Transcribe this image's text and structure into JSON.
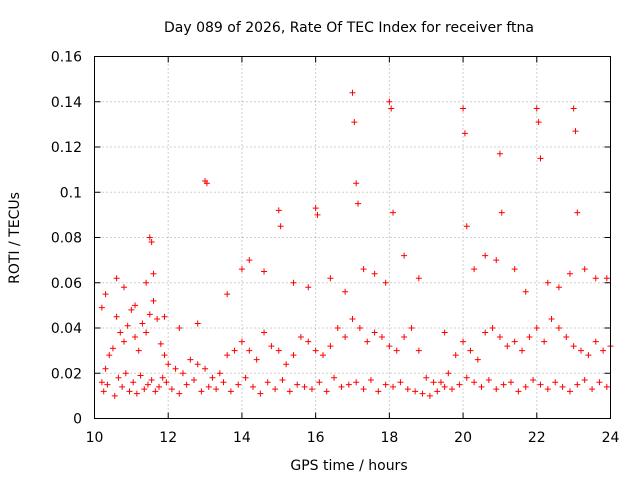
{
  "chart_data": {
    "type": "scatter",
    "title": "Day 089 of 2026, Rate Of TEC Index for receiver ftna",
    "xlabel": "GPS time / hours",
    "ylabel": "ROTI / TECUs",
    "xlim": [
      10,
      24
    ],
    "ylim": [
      0,
      0.16
    ],
    "xticks": [
      10,
      12,
      14,
      16,
      18,
      20,
      22,
      24
    ],
    "xtick_labels": [
      "10",
      "12",
      "14",
      "16",
      "18",
      "20",
      "22",
      "24"
    ],
    "yticks": [
      0,
      0.02,
      0.04,
      0.06,
      0.08,
      0.1,
      0.12,
      0.14,
      0.16
    ],
    "ytick_labels": [
      "0",
      "0.02",
      "0.04",
      "0.06",
      "0.08",
      "0.1",
      "0.12",
      "0.14",
      "0.16"
    ],
    "grid": true,
    "marker": "+",
    "color": "#ff0000",
    "series": [
      {
        "name": "ROTI",
        "x": [
          10.2,
          10.3,
          10.4,
          10.5,
          10.6,
          10.7,
          10.8,
          10.9,
          11.0,
          11.1,
          11.2,
          11.3,
          11.4,
          11.5,
          11.6,
          11.7,
          11.8,
          11.9,
          12.0,
          12.2,
          12.4,
          12.6,
          12.8,
          13.0,
          13.2,
          13.4,
          13.6,
          13.8,
          14.0,
          14.2,
          14.4,
          14.6,
          14.8,
          15.0,
          15.2,
          15.4,
          15.6,
          15.8,
          16.0,
          16.2,
          16.4,
          16.6,
          16.8,
          17.0,
          17.2,
          17.4,
          17.6,
          17.8,
          18.0,
          18.2,
          18.4,
          18.6,
          18.8,
          19.0,
          19.2,
          19.4,
          19.6,
          19.8,
          20.0,
          20.2,
          20.4,
          20.6,
          20.8,
          21.0,
          21.2,
          21.4,
          21.6,
          21.8,
          22.0,
          22.2,
          22.4,
          22.6,
          22.8,
          23.0,
          23.2,
          23.4,
          23.6,
          23.8,
          24.0,
          10.25,
          10.35,
          10.55,
          10.65,
          10.75,
          10.85,
          10.95,
          11.05,
          11.15,
          11.25,
          11.35,
          11.45,
          11.55,
          11.65,
          11.75,
          11.85,
          11.95,
          12.1,
          12.3,
          12.5,
          12.7,
          12.9,
          13.1,
          13.3,
          13.5,
          13.7,
          13.9,
          14.1,
          14.3,
          14.5,
          14.7,
          14.9,
          15.1,
          15.3,
          15.5,
          15.7,
          15.9,
          16.1,
          16.3,
          16.5,
          16.7,
          16.9,
          17.1,
          17.3,
          17.5,
          17.7,
          17.9,
          18.1,
          18.3,
          18.5,
          18.7,
          18.9,
          19.1,
          19.3,
          19.5,
          19.7,
          19.9,
          20.1,
          20.3,
          20.5,
          20.7,
          20.9,
          21.1,
          21.3,
          21.5,
          21.7,
          21.9,
          22.1,
          22.3,
          22.5,
          22.7,
          22.9,
          23.1,
          23.3,
          23.5,
          23.7,
          23.9,
          10.2,
          10.6,
          11.5,
          11.55,
          13.0,
          13.05,
          14.0,
          15.0,
          15.05,
          16.0,
          16.05,
          17.0,
          17.05,
          17.1,
          17.15,
          18.0,
          18.05,
          18.1,
          20.0,
          20.05,
          20.1,
          21.0,
          21.05,
          22.0,
          22.05,
          22.1,
          23.0,
          23.05,
          23.1,
          10.3,
          10.8,
          11.1,
          11.4,
          11.6,
          11.9,
          12.3,
          12.8,
          13.6,
          14.2,
          14.6,
          15.4,
          15.8,
          16.4,
          16.8,
          17.3,
          17.6,
          17.9,
          18.4,
          18.8,
          19.5,
          20.3,
          20.6,
          20.9,
          21.4,
          21.7,
          22.3,
          22.6,
          22.9,
          23.3,
          23.6,
          23.9
        ],
        "y": [
          0.016,
          0.022,
          0.028,
          0.031,
          0.045,
          0.038,
          0.034,
          0.041,
          0.048,
          0.036,
          0.03,
          0.042,
          0.038,
          0.046,
          0.052,
          0.044,
          0.033,
          0.028,
          0.024,
          0.022,
          0.02,
          0.026,
          0.024,
          0.022,
          0.018,
          0.02,
          0.028,
          0.03,
          0.034,
          0.03,
          0.026,
          0.038,
          0.032,
          0.03,
          0.024,
          0.028,
          0.036,
          0.034,
          0.03,
          0.028,
          0.032,
          0.04,
          0.036,
          0.044,
          0.04,
          0.034,
          0.038,
          0.036,
          0.032,
          0.03,
          0.036,
          0.04,
          0.03,
          0.018,
          0.016,
          0.016,
          0.02,
          0.028,
          0.034,
          0.03,
          0.026,
          0.038,
          0.04,
          0.036,
          0.032,
          0.034,
          0.03,
          0.036,
          0.04,
          0.034,
          0.044,
          0.04,
          0.036,
          0.032,
          0.03,
          0.028,
          0.034,
          0.03,
          0.032,
          0.012,
          0.015,
          0.01,
          0.018,
          0.014,
          0.02,
          0.012,
          0.016,
          0.011,
          0.019,
          0.013,
          0.015,
          0.017,
          0.012,
          0.014,
          0.018,
          0.016,
          0.013,
          0.011,
          0.015,
          0.017,
          0.012,
          0.014,
          0.013,
          0.016,
          0.012,
          0.015,
          0.018,
          0.014,
          0.011,
          0.016,
          0.013,
          0.017,
          0.012,
          0.015,
          0.014,
          0.013,
          0.016,
          0.012,
          0.018,
          0.014,
          0.015,
          0.016,
          0.013,
          0.017,
          0.012,
          0.015,
          0.014,
          0.016,
          0.013,
          0.012,
          0.011,
          0.01,
          0.012,
          0.014,
          0.013,
          0.015,
          0.018,
          0.016,
          0.014,
          0.017,
          0.013,
          0.015,
          0.016,
          0.012,
          0.014,
          0.017,
          0.015,
          0.013,
          0.016,
          0.014,
          0.012,
          0.015,
          0.017,
          0.013,
          0.016,
          0.014,
          0.049,
          0.062,
          0.08,
          0.078,
          0.105,
          0.104,
          0.066,
          0.092,
          0.085,
          0.093,
          0.09,
          0.144,
          0.131,
          0.104,
          0.095,
          0.14,
          0.137,
          0.091,
          0.137,
          0.126,
          0.085,
          0.117,
          0.091,
          0.137,
          0.131,
          0.115,
          0.137,
          0.127,
          0.091,
          0.055,
          0.058,
          0.05,
          0.06,
          0.064,
          0.045,
          0.04,
          0.042,
          0.055,
          0.07,
          0.065,
          0.06,
          0.058,
          0.062,
          0.056,
          0.066,
          0.064,
          0.06,
          0.072,
          0.062,
          0.038,
          0.066,
          0.072,
          0.07,
          0.066,
          0.056,
          0.06,
          0.058,
          0.064,
          0.066,
          0.062,
          0.062
        ]
      }
    ]
  }
}
